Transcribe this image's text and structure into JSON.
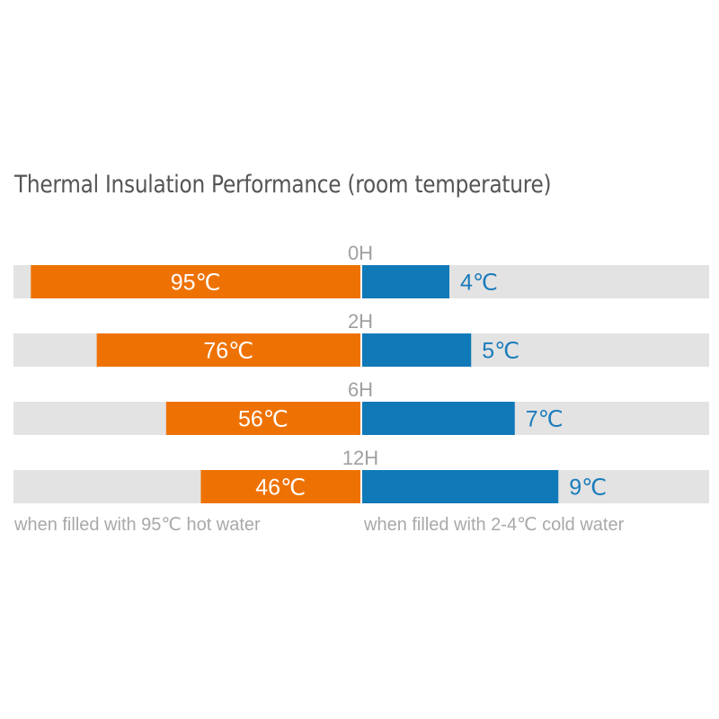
{
  "chart_data": {
    "type": "bar",
    "title": "Thermal Insulation Performance (room temperature)",
    "categories": [
      "0H",
      "2H",
      "6H",
      "12H"
    ],
    "series": [
      {
        "values": [
          95,
          76,
          56,
          46
        ],
        "labels": [
          "95℃",
          "76℃",
          "56℃",
          "46℃"
        ],
        "color": "#ee7203"
      },
      {
        "values": [
          4,
          5,
          7,
          9
        ],
        "labels": [
          "4℃",
          "5℃",
          "7℃",
          "9℃"
        ],
        "color": "#1079b8"
      }
    ],
    "background_bar_color": "#e3e3e3",
    "label_color_cold": "#1a7cbc",
    "hot_value_range": [
      0,
      100
    ],
    "cold_value_range": [
      0,
      16
    ],
    "footnotes": {
      "left": "when filled with 95℃ hot water",
      "right": "when filled with 2-4℃ cold water"
    }
  }
}
